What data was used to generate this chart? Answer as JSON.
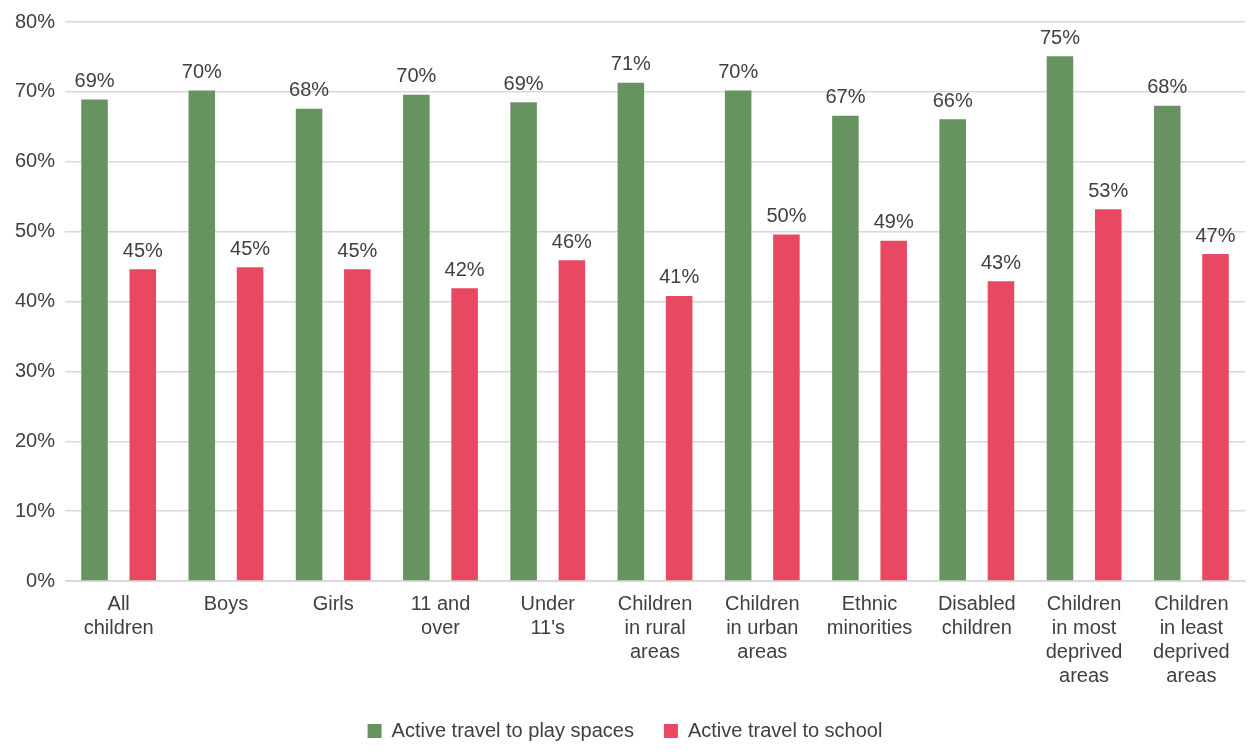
{
  "chart_data": {
    "type": "bar",
    "categories": [
      "All children",
      "Boys",
      "Girls",
      "11 and over",
      "Under 11's",
      "Children in rural areas",
      "Children in urban areas",
      "Ethnic minorities",
      "Disabled children",
      "Children in most deprived areas",
      "Children in least deprived areas"
    ],
    "series": [
      {
        "name": "Active travel to play spaces",
        "color": "#66935f",
        "values": [
          68.9,
          70.2,
          67.6,
          69.6,
          68.5,
          71.3,
          70.2,
          66.6,
          66.1,
          75.1,
          68.0
        ],
        "value_labels": [
          "69%",
          "70%",
          "68%",
          "70%",
          "69%",
          "71%",
          "70%",
          "67%",
          "66%",
          "75%",
          "68%"
        ]
      },
      {
        "name": "Active travel to school",
        "color": "#e84862",
        "values": [
          44.6,
          44.9,
          44.6,
          41.9,
          45.9,
          40.8,
          49.6,
          48.7,
          42.9,
          53.2,
          46.8
        ],
        "value_labels": [
          "45%",
          "45%",
          "45%",
          "42%",
          "46%",
          "41%",
          "50%",
          "49%",
          "43%",
          "53%",
          "47%"
        ]
      }
    ],
    "ylim": [
      0,
      80
    ],
    "yticks": [
      {
        "value": 0,
        "label": "0%"
      },
      {
        "value": 10,
        "label": "10%"
      },
      {
        "value": 20,
        "label": "20%"
      },
      {
        "value": 30,
        "label": "30%"
      },
      {
        "value": 40,
        "label": "40%"
      },
      {
        "value": 50,
        "label": "50%"
      },
      {
        "value": 60,
        "label": "60%"
      },
      {
        "value": 70,
        "label": "70%"
      },
      {
        "value": 80,
        "label": "80%"
      }
    ],
    "grid": "y",
    "legend": "bottom"
  }
}
